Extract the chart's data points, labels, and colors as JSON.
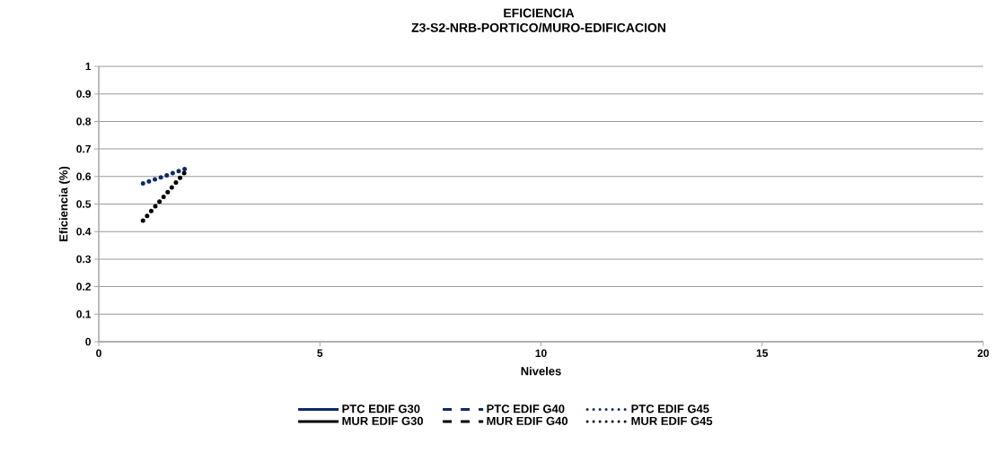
{
  "chart_data": {
    "type": "line",
    "title": "EFICIENCIA",
    "subtitle": "Z3-S2-NRB-PORTICO/MURO-EDIFICACION",
    "xlabel": "Niveles",
    "ylabel": "Eficiencia  (%)",
    "x": [
      1,
      2
    ],
    "xlim": [
      0,
      20
    ],
    "xticks": [
      0,
      5,
      10,
      15,
      20
    ],
    "ylim": [
      0,
      1
    ],
    "yticks": [
      0,
      0.1,
      0.2,
      0.3,
      0.4,
      0.5,
      0.6,
      0.7,
      0.8,
      0.9,
      1
    ],
    "grid": "y",
    "legend": "bottom",
    "marker": "none",
    "series": [
      {
        "name": "PTC EDIF G30",
        "color": "#0e2a66",
        "line_style": "solid",
        "values": [
          null,
          null
        ]
      },
      {
        "name": "PTC EDIF G40",
        "color": "#0e2a66",
        "line_style": "dashed",
        "values": [
          null,
          null
        ]
      },
      {
        "name": "PTC EDIF G45",
        "color": "#0e2a66",
        "line_style": "dotted",
        "values": [
          0.575,
          0.63
        ]
      },
      {
        "name": "MUR EDIF G30",
        "color": "#000000",
        "line_style": "solid",
        "values": [
          null,
          null
        ]
      },
      {
        "name": "MUR EDIF G40",
        "color": "#000000",
        "line_style": "dashed",
        "values": [
          null,
          null
        ]
      },
      {
        "name": "MUR EDIF G45",
        "color": "#000000",
        "line_style": "dotted",
        "values": [
          0.44,
          0.625
        ]
      }
    ]
  }
}
